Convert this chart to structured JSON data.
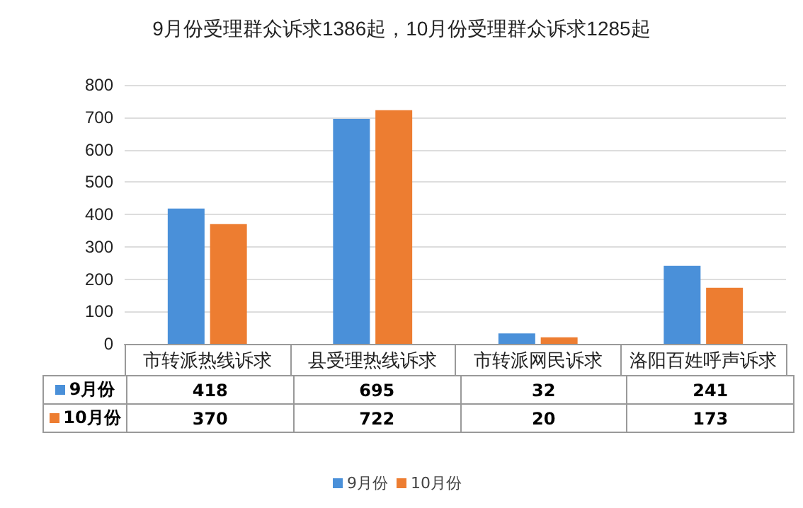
{
  "chart_data": {
    "type": "bar",
    "title": "9月份受理群众诉求1386起，10月份受理群众诉求1285起",
    "categories": [
      "市转派热线诉求",
      "县受理热线诉求",
      "市转派网民诉求",
      "洛阳百姓呼声诉求"
    ],
    "series": [
      {
        "name": "9月份",
        "color": "#4a90d9",
        "values": [
          418,
          695,
          32,
          241
        ]
      },
      {
        "name": "10月份",
        "color": "#ed7d31",
        "values": [
          370,
          722,
          20,
          173
        ]
      }
    ],
    "ylim": [
      0,
      800
    ],
    "yticks": [
      0,
      100,
      200,
      300,
      400,
      500,
      600,
      700,
      800
    ],
    "grid": "y",
    "legend": "bottom",
    "data_labels": true
  }
}
